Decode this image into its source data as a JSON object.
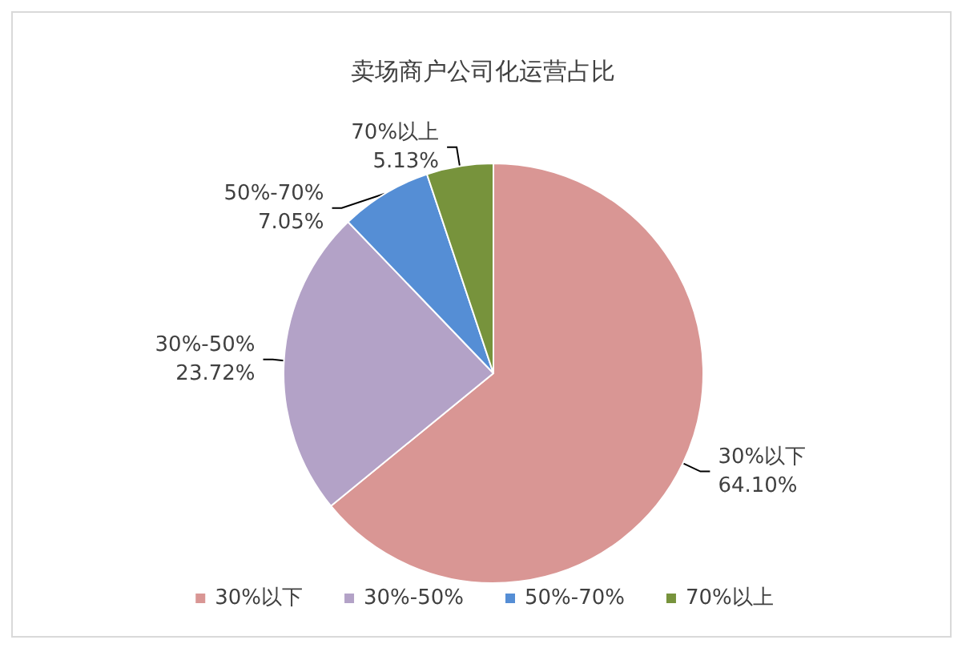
{
  "chart_data": {
    "type": "pie",
    "title": "卖场商户公司化运营占比",
    "categories": [
      "30%以下",
      "30%-50%",
      "50%-70%",
      "70%以上"
    ],
    "values": [
      64.1,
      23.72,
      7.05,
      5.13
    ],
    "colors": [
      "#d99694",
      "#b3a2c7",
      "#558ed5",
      "#77933c"
    ],
    "value_labels": [
      "64.10%",
      "23.72%",
      "7.05%",
      "5.13%"
    ],
    "legend": "bottom"
  }
}
